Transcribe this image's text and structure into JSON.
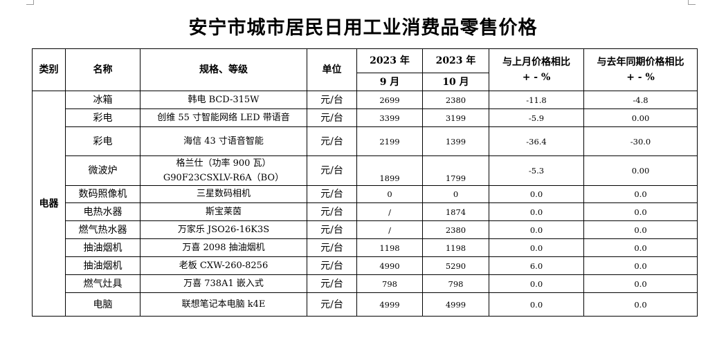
{
  "title": "安宁市城市居民日用工业消费品零售价格",
  "headers": {
    "category": "类别",
    "name": "名称",
    "spec": "规格、等级",
    "unit": "单位",
    "year_sep": "2023 年",
    "month_sep": "9 月",
    "year_oct": "2023 年",
    "month_oct": "10 月",
    "mom_line1": "与上月价格相比",
    "mom_line2": "+ - %",
    "yoy_line1": "与去年同期价格相比",
    "yoy_line2": "+ - %"
  },
  "category": "电器",
  "rows": [
    {
      "name": "冰箱",
      "spec1": "韩电 BCD-315W",
      "spec2": "",
      "unit": "元/台",
      "sep": "2699",
      "oct": "2380",
      "mom": "-11.8",
      "yoy": "-4.8"
    },
    {
      "name": "彩电",
      "spec1": "创维 55 寸智能网络 LED 带语音",
      "spec2": "",
      "unit": "元/台",
      "sep": "3399",
      "oct": "3199",
      "mom": "-5.9",
      "yoy": "0.00"
    },
    {
      "name": "彩电",
      "spec1": "海信 43 寸语音智能",
      "spec2": "",
      "unit": "元/台",
      "sep": "2199",
      "oct": "1399",
      "mom": "-36.4",
      "yoy": "-30.0"
    },
    {
      "name": "微波炉",
      "spec1": "格兰仕（功率 900 瓦）",
      "spec2": "G90F23CSXLV-R6A（BO）",
      "unit": "元/台",
      "sep": "1899",
      "oct": "1799",
      "mom": "-5.3",
      "yoy": "0.00"
    },
    {
      "name": "数码照像机",
      "spec1": "三星数码相机",
      "spec2": "",
      "unit": "元/台",
      "sep": "0",
      "oct": "0",
      "mom": "0.0",
      "yoy": "0.0"
    },
    {
      "name": "电热水器",
      "spec1": "斯宝莱茵",
      "spec2": "",
      "unit": "元/台",
      "sep": "/",
      "oct": "1874",
      "mom": "0.0",
      "yoy": "0.0"
    },
    {
      "name": "燃气热水器",
      "spec1": "万家乐 JSO26-16K3S",
      "spec2": "",
      "unit": "元/台",
      "sep": "/",
      "oct": "2380",
      "mom": "0.0",
      "yoy": "0.0"
    },
    {
      "name": "抽油烟机",
      "spec1": "万喜 2098 抽油烟机",
      "spec2": "",
      "unit": "元/台",
      "sep": "1198",
      "oct": "1198",
      "mom": "0.0",
      "yoy": "0.0"
    },
    {
      "name": "抽油烟机",
      "spec1": "老板 CXW-260-8256",
      "spec2": "",
      "unit": "元/台",
      "sep": "4990",
      "oct": "5290",
      "mom": "6.0",
      "yoy": "0.0"
    },
    {
      "name": "燃气灶具",
      "spec1": "万喜 738A1 嵌入式",
      "spec2": "",
      "unit": "元/台",
      "sep": "798",
      "oct": "798",
      "mom": "0.0",
      "yoy": "0.0"
    },
    {
      "name": "电脑",
      "spec1": "联想笔记本电脑 k4E",
      "spec2": "",
      "unit": "元/台",
      "sep": "4999",
      "oct": "4999",
      "mom": "0.0",
      "yoy": "0.0"
    }
  ]
}
